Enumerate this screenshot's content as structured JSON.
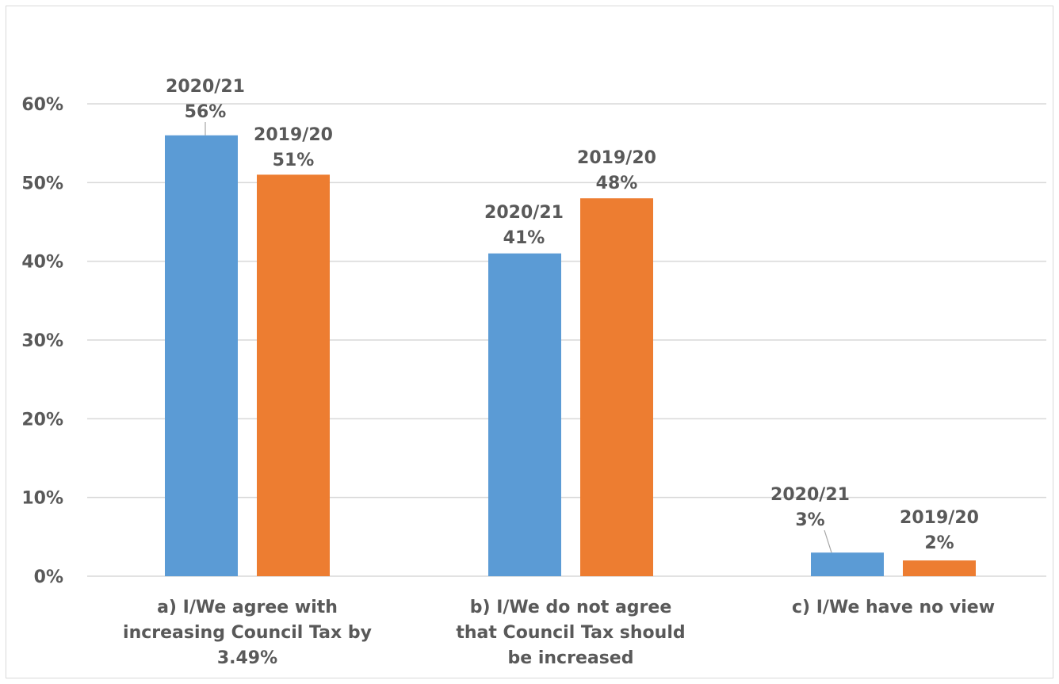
{
  "chart_data": {
    "type": "bar",
    "categories": [
      [
        "a) I/We agree with",
        "increasing Council Tax by",
        "3.49%"
      ],
      [
        "b) I/We do not agree",
        "that Council Tax should",
        "be increased"
      ],
      [
        "c) I/We have no view"
      ]
    ],
    "series": [
      {
        "name": "2020/21",
        "color": "#5b9bd5",
        "values": [
          56,
          41,
          3
        ],
        "labels": [
          "56%",
          "41%",
          "3%"
        ]
      },
      {
        "name": "2019/20",
        "color": "#ed7d31",
        "values": [
          51,
          48,
          2
        ],
        "labels": [
          "51%",
          "48%",
          "2%"
        ]
      }
    ],
    "ylim": [
      0,
      60
    ],
    "yticks": [
      {
        "value": 0,
        "label": "0%"
      },
      {
        "value": 10,
        "label": "10%"
      },
      {
        "value": 20,
        "label": "20%"
      },
      {
        "value": 30,
        "label": "30%"
      },
      {
        "value": 40,
        "label": "40%"
      },
      {
        "value": 50,
        "label": "50%"
      },
      {
        "value": 60,
        "label": "60%"
      }
    ],
    "grid": true,
    "legend": "none",
    "grid_color": "#d9d9d9",
    "text_color": "#595959"
  }
}
